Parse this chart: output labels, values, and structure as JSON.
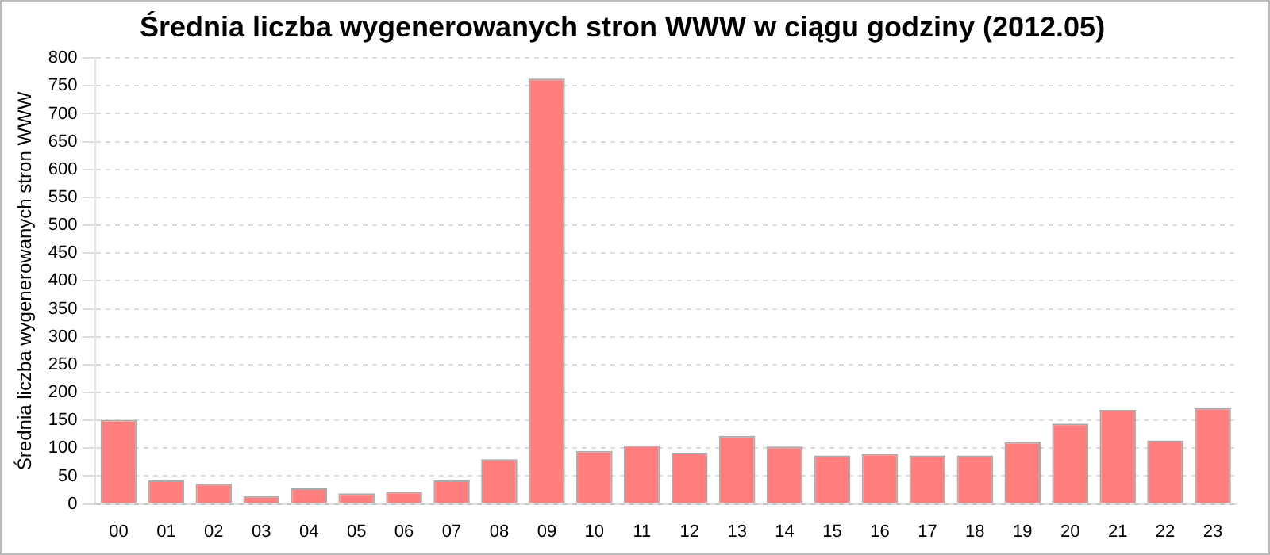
{
  "chart_data": {
    "type": "bar",
    "title": "Średnia liczba wygenerowanych stron WWW w ciągu godziny (2012.05)",
    "ylabel": "Średnia liczba wygenerowanych stron WWW",
    "categories": [
      "00",
      "01",
      "02",
      "03",
      "04",
      "05",
      "06",
      "07",
      "08",
      "09",
      "10",
      "11",
      "12",
      "13",
      "14",
      "15",
      "16",
      "17",
      "18",
      "19",
      "20",
      "21",
      "22",
      "23"
    ],
    "values": [
      151,
      42,
      36,
      14,
      28,
      19,
      22,
      42,
      80,
      763,
      95,
      105,
      92,
      122,
      103,
      87,
      90,
      87,
      87,
      111,
      144,
      169,
      114,
      172
    ],
    "color": "#ff7f7f",
    "ylim": [
      0,
      800
    ],
    "yticks": [
      0,
      50,
      100,
      150,
      200,
      250,
      300,
      350,
      400,
      450,
      500,
      550,
      600,
      650,
      700,
      750,
      800
    ],
    "grid": "y",
    "legend": false
  }
}
